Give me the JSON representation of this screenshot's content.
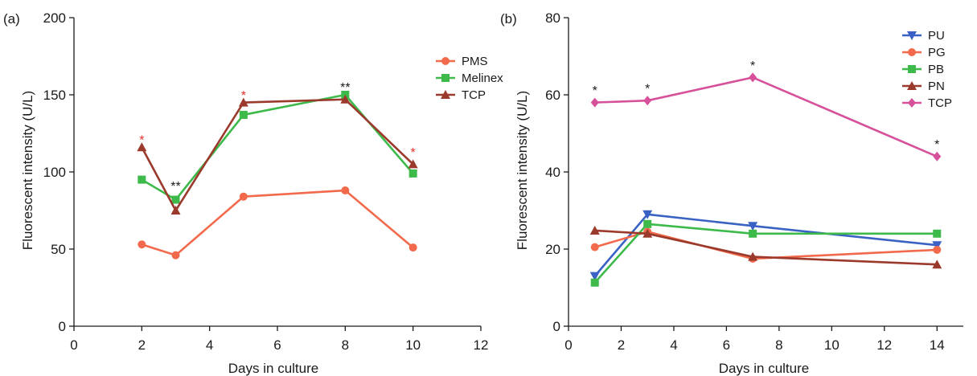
{
  "chart_data": [
    {
      "type": "line",
      "panel_label": "(a)",
      "xlabel": "Days in culture",
      "ylabel": "Fluorescent intensity (U/L)",
      "xlim": [
        0,
        12
      ],
      "ylim": [
        0,
        200
      ],
      "xticks": [
        0,
        2,
        4,
        6,
        8,
        10,
        12
      ],
      "yticks": [
        0,
        50,
        100,
        150,
        200
      ],
      "legend_position": "top-right",
      "series": [
        {
          "name": "PMS",
          "color": "#f26a4b",
          "marker": "circle",
          "x": [
            2,
            3,
            5,
            8,
            10
          ],
          "y": [
            53,
            46,
            84,
            88,
            51
          ]
        },
        {
          "name": "Melinex",
          "color": "#3dba4a",
          "marker": "square",
          "x": [
            2,
            3,
            5,
            8,
            10
          ],
          "y": [
            95,
            82,
            137,
            150,
            99
          ]
        },
        {
          "name": "TCP",
          "color": "#9b3a2c",
          "marker": "triangle-up",
          "x": [
            2,
            3,
            5,
            8,
            10
          ],
          "y": [
            116,
            75,
            145,
            147,
            105
          ]
        }
      ],
      "annotations": [
        {
          "text": "*",
          "x": 2,
          "y": 118,
          "color": "#e8302a"
        },
        {
          "text": "**",
          "x": 3,
          "y": 88,
          "color": "#1a1a1a"
        },
        {
          "text": "*",
          "x": 5,
          "y": 147,
          "color": "#e8302a"
        },
        {
          "text": "**",
          "x": 8,
          "y": 152,
          "color": "#1a1a1a"
        },
        {
          "text": "*",
          "x": 10,
          "y": 110,
          "color": "#e8302a"
        }
      ]
    },
    {
      "type": "line",
      "panel_label": "(b)",
      "xlabel": "Days in culture",
      "ylabel": "Fluorescent intensity (U/L)",
      "xlim": [
        0,
        15
      ],
      "ylim": [
        0,
        80
      ],
      "xticks": [
        0,
        2,
        4,
        6,
        8,
        10,
        12,
        14
      ],
      "yticks": [
        0,
        20,
        40,
        60,
        80
      ],
      "legend_position": "top-right",
      "series": [
        {
          "name": "PU",
          "color": "#3a62c4",
          "marker": "triangle-down",
          "x": [
            1,
            3,
            7,
            14
          ],
          "y": [
            13,
            29,
            26,
            21
          ]
        },
        {
          "name": "PG",
          "color": "#f26a4b",
          "marker": "circle",
          "x": [
            1,
            3,
            7,
            14
          ],
          "y": [
            20.5,
            24.5,
            17.5,
            19.8
          ]
        },
        {
          "name": "PB",
          "color": "#3dba4a",
          "marker": "square",
          "x": [
            1,
            3,
            7,
            14
          ],
          "y": [
            11.3,
            26.5,
            24,
            24
          ]
        },
        {
          "name": "PN",
          "color": "#9b3a2c",
          "marker": "triangle-up",
          "x": [
            1,
            3,
            7,
            14
          ],
          "y": [
            24.8,
            24,
            18,
            16
          ]
        },
        {
          "name": "TCP",
          "color": "#d6509a",
          "marker": "diamond",
          "x": [
            1,
            3,
            7,
            14
          ],
          "y": [
            58,
            58.5,
            64.5,
            44
          ]
        }
      ],
      "annotations": [
        {
          "text": "*",
          "x": 1,
          "y": 60,
          "color": "#1a1a1a"
        },
        {
          "text": "*",
          "x": 3,
          "y": 60.5,
          "color": "#1a1a1a"
        },
        {
          "text": "*",
          "x": 7,
          "y": 66.5,
          "color": "#1a1a1a"
        },
        {
          "text": "*",
          "x": 14,
          "y": 46,
          "color": "#1a1a1a"
        }
      ]
    }
  ]
}
